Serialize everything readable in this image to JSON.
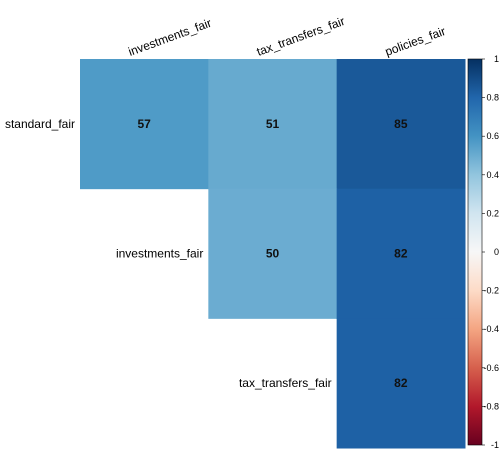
{
  "chart_data": {
    "type": "heatmap",
    "layout": "upper-triangle",
    "columns": [
      "investments_fair",
      "tax_transfers_fair",
      "policies_fair"
    ],
    "rows": [
      "standard_fair",
      "investments_fair",
      "tax_transfers_fair"
    ],
    "cells": [
      {
        "row": "standard_fair",
        "col": "investments_fair",
        "value": 57
      },
      {
        "row": "standard_fair",
        "col": "tax_transfers_fair",
        "value": 51
      },
      {
        "row": "standard_fair",
        "col": "policies_fair",
        "value": 85
      },
      {
        "row": "investments_fair",
        "col": "tax_transfers_fair",
        "value": 50
      },
      {
        "row": "investments_fair",
        "col": "policies_fair",
        "value": 82
      },
      {
        "row": "tax_transfers_fair",
        "col": "policies_fair",
        "value": 82
      }
    ],
    "colorbar": {
      "range": [
        -1,
        1
      ],
      "ticks": [
        "1",
        "0.8",
        "0.6",
        "0.4",
        "0.2",
        "0",
        "-0.2",
        "-0.4",
        "-0.6",
        "-0.8",
        "-1"
      ],
      "colors": [
        "#053061",
        "#2166ac",
        "#4393c3",
        "#92c5de",
        "#d1e5f0",
        "#f7f7f7",
        "#fddbc7",
        "#f4a582",
        "#d6604d",
        "#b2182b",
        "#67001f"
      ]
    }
  }
}
